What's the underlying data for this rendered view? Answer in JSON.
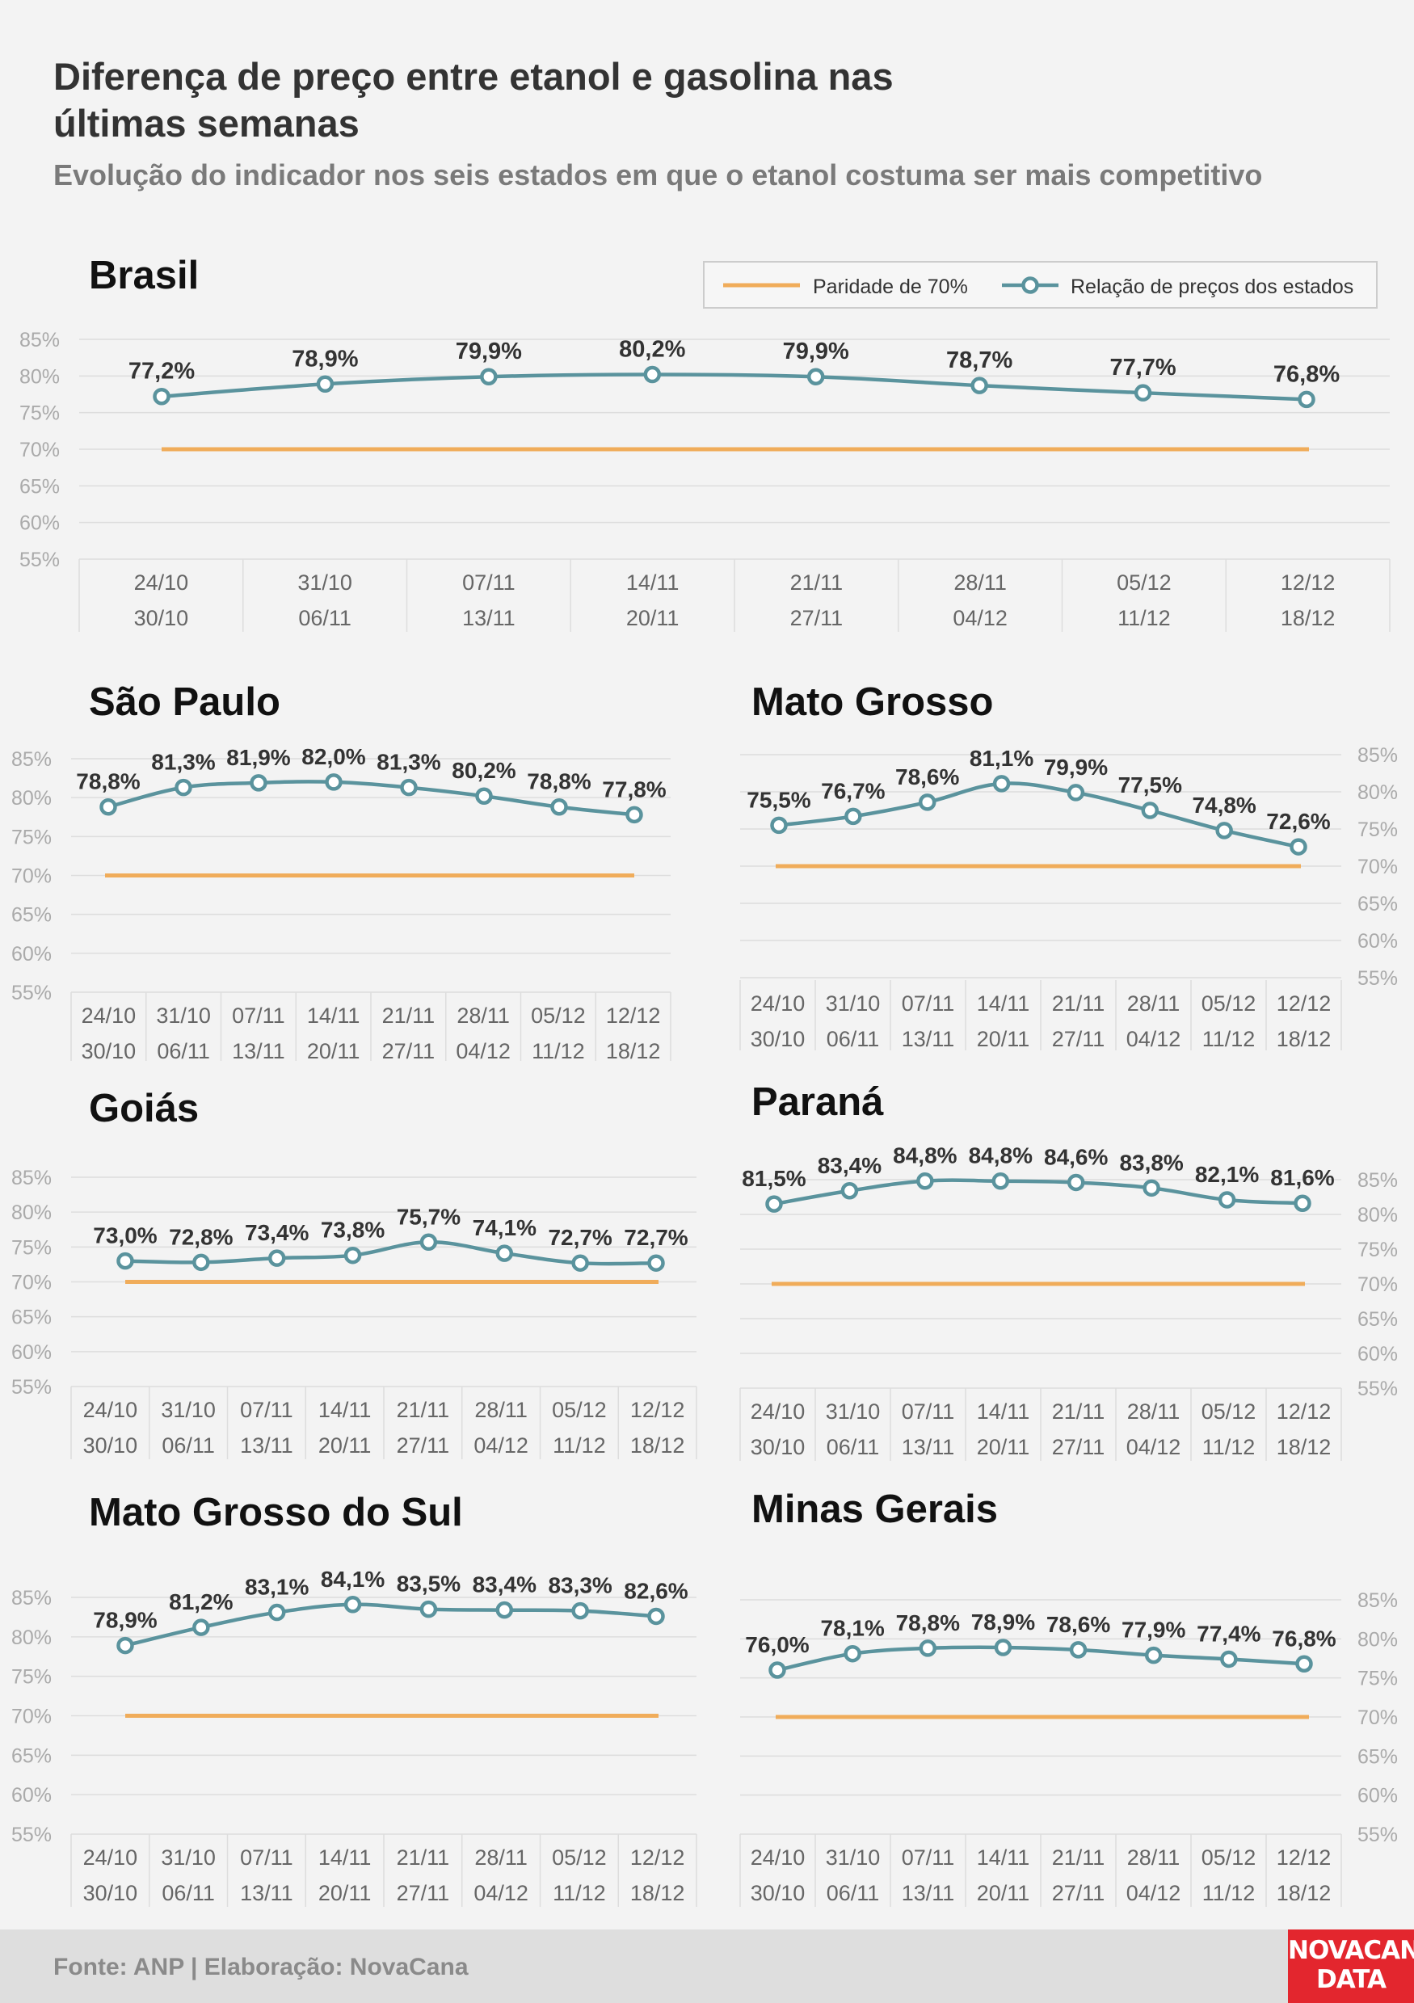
{
  "title": "Diferença de preço entre etanol e gasolina nas últimas semanas",
  "subtitle": "Evolução do indicador nos seis estados em que o etanol costuma ser mais competitivo",
  "legend": {
    "parity": "Paridade de 70%",
    "ratio": "Relação de preços dos estados"
  },
  "colors": {
    "ratio_line": "#5a939d",
    "parity_line": "#f0ac5a",
    "grid": "#dddddd",
    "axis_text": "#aaaaaa",
    "label_text": "#333333"
  },
  "footer": {
    "source": "Fonte: ANP | Elaboração: NovaCana",
    "logo_line1": "NOVACANA",
    "logo_line2": "DATA"
  },
  "chart_data": [
    {
      "type": "line",
      "title": "Brasil",
      "categories": [
        "24/10",
        "31/10",
        "07/11",
        "14/11",
        "21/11",
        "28/11",
        "05/12",
        "12/12"
      ],
      "categories_end": [
        "30/10",
        "06/11",
        "13/11",
        "20/11",
        "27/11",
        "04/12",
        "11/12",
        "18/12"
      ],
      "series": [
        {
          "name": "Relação de preços dos estados",
          "values": [
            77.2,
            78.9,
            79.9,
            80.2,
            79.9,
            78.7,
            77.7,
            76.8
          ],
          "labels": [
            "77,2%",
            "78,9%",
            "79,9%",
            "80,2%",
            "79,9%",
            "78,7%",
            "77,7%",
            "76,8%"
          ]
        },
        {
          "name": "Paridade de 70%",
          "values": [
            70,
            70,
            70,
            70,
            70,
            70,
            70,
            70
          ]
        }
      ],
      "yticks": [
        "55%",
        "60%",
        "65%",
        "70%",
        "75%",
        "80%",
        "85%"
      ],
      "ylim": [
        55,
        85
      ],
      "grid": true,
      "axis_side": "left",
      "legend": "top-right"
    },
    {
      "type": "line",
      "title": "São Paulo",
      "categories": [
        "24/10",
        "31/10",
        "07/11",
        "14/11",
        "21/11",
        "28/11",
        "05/12",
        "12/12"
      ],
      "categories_end": [
        "30/10",
        "06/11",
        "13/11",
        "20/11",
        "27/11",
        "04/12",
        "11/12",
        "18/12"
      ],
      "series": [
        {
          "name": "Relação de preços dos estados",
          "values": [
            78.8,
            81.3,
            81.9,
            82.0,
            81.3,
            80.2,
            78.8,
            77.8
          ],
          "labels": [
            "78,8%",
            "81,3%",
            "81,9%",
            "82,0%",
            "81,3%",
            "80,2%",
            "78,8%",
            "77,8%"
          ]
        },
        {
          "name": "Paridade de 70%",
          "values": [
            70,
            70,
            70,
            70,
            70,
            70,
            70,
            70
          ]
        }
      ],
      "yticks": [
        "55%",
        "60%",
        "65%",
        "70%",
        "75%",
        "80%",
        "85%"
      ],
      "ylim": [
        55,
        85
      ],
      "grid": true,
      "axis_side": "left"
    },
    {
      "type": "line",
      "title": "Mato Grosso",
      "categories": [
        "24/10",
        "31/10",
        "07/11",
        "14/11",
        "21/11",
        "28/11",
        "05/12",
        "12/12"
      ],
      "categories_end": [
        "30/10",
        "06/11",
        "13/11",
        "20/11",
        "27/11",
        "04/12",
        "11/12",
        "18/12"
      ],
      "series": [
        {
          "name": "Relação de preços dos estados",
          "values": [
            75.5,
            76.7,
            78.6,
            81.1,
            79.9,
            77.5,
            74.8,
            72.6
          ],
          "labels": [
            "75,5%",
            "76,7%",
            "78,6%",
            "81,1%",
            "79,9%",
            "77,5%",
            "74,8%",
            "72,6%"
          ]
        },
        {
          "name": "Paridade de 70%",
          "values": [
            70,
            70,
            70,
            70,
            70,
            70,
            70,
            70
          ]
        }
      ],
      "yticks": [
        "55%",
        "60%",
        "65%",
        "70%",
        "75%",
        "80%",
        "85%"
      ],
      "ylim": [
        55,
        85
      ],
      "grid": true,
      "axis_side": "right"
    },
    {
      "type": "line",
      "title": "Goiás",
      "categories": [
        "24/10",
        "31/10",
        "07/11",
        "14/11",
        "21/11",
        "28/11",
        "05/12",
        "12/12"
      ],
      "categories_end": [
        "30/10",
        "06/11",
        "13/11",
        "20/11",
        "27/11",
        "04/12",
        "11/12",
        "18/12"
      ],
      "series": [
        {
          "name": "Relação de preços dos estados",
          "values": [
            73.0,
            72.8,
            73.4,
            73.8,
            75.7,
            74.1,
            72.7,
            72.7
          ],
          "labels": [
            "73,0%",
            "72,8%",
            "73,4%",
            "73,8%",
            "75,7%",
            "74,1%",
            "72,7%",
            "72,7%"
          ]
        },
        {
          "name": "Paridade de 70%",
          "values": [
            70,
            70,
            70,
            70,
            70,
            70,
            70,
            70
          ]
        }
      ],
      "yticks": [
        "55%",
        "60%",
        "65%",
        "70%",
        "75%",
        "80%",
        "85%"
      ],
      "ylim": [
        55,
        85
      ],
      "grid": true,
      "axis_side": "left"
    },
    {
      "type": "line",
      "title": "Paraná",
      "categories": [
        "24/10",
        "31/10",
        "07/11",
        "14/11",
        "21/11",
        "28/11",
        "05/12",
        "12/12"
      ],
      "categories_end": [
        "30/10",
        "06/11",
        "13/11",
        "20/11",
        "27/11",
        "04/12",
        "11/12",
        "18/12"
      ],
      "series": [
        {
          "name": "Relação de preços dos estados",
          "values": [
            81.5,
            83.4,
            84.8,
            84.8,
            84.6,
            83.8,
            82.1,
            81.6
          ],
          "labels": [
            "81,5%",
            "83,4%",
            "84,8%",
            "84,8%",
            "84,6%",
            "83,8%",
            "82,1%",
            "81,6%"
          ]
        },
        {
          "name": "Paridade de 70%",
          "values": [
            70,
            70,
            70,
            70,
            70,
            70,
            70,
            70
          ]
        }
      ],
      "yticks": [
        "55%",
        "60%",
        "65%",
        "70%",
        "75%",
        "80%",
        "85%"
      ],
      "ylim": [
        55,
        85
      ],
      "grid": true,
      "axis_side": "right"
    },
    {
      "type": "line",
      "title": "Mato Grosso do Sul",
      "categories": [
        "24/10",
        "31/10",
        "07/11",
        "14/11",
        "21/11",
        "28/11",
        "05/12",
        "12/12"
      ],
      "categories_end": [
        "30/10",
        "06/11",
        "13/11",
        "20/11",
        "27/11",
        "04/12",
        "11/12",
        "18/12"
      ],
      "series": [
        {
          "name": "Relação de preços dos estados",
          "values": [
            78.9,
            81.2,
            83.1,
            84.1,
            83.5,
            83.4,
            83.3,
            82.6
          ],
          "labels": [
            "78,9%",
            "81,2%",
            "83,1%",
            "84,1%",
            "83,5%",
            "83,4%",
            "83,3%",
            "82,6%"
          ]
        },
        {
          "name": "Paridade de 70%",
          "values": [
            70,
            70,
            70,
            70,
            70,
            70,
            70,
            70
          ]
        }
      ],
      "yticks": [
        "55%",
        "60%",
        "65%",
        "70%",
        "75%",
        "80%",
        "85%"
      ],
      "ylim": [
        55,
        85
      ],
      "grid": true,
      "axis_side": "left"
    },
    {
      "type": "line",
      "title": "Minas Gerais",
      "categories": [
        "24/10",
        "31/10",
        "07/11",
        "14/11",
        "21/11",
        "28/11",
        "05/12",
        "12/12"
      ],
      "categories_end": [
        "30/10",
        "06/11",
        "13/11",
        "20/11",
        "27/11",
        "04/12",
        "11/12",
        "18/12"
      ],
      "series": [
        {
          "name": "Relação de preços dos estados",
          "values": [
            76.0,
            78.1,
            78.8,
            78.9,
            78.6,
            77.9,
            77.4,
            76.8
          ],
          "labels": [
            "76,0%",
            "78,1%",
            "78,8%",
            "78,9%",
            "78,6%",
            "77,9%",
            "77,4%",
            "76,8%"
          ]
        },
        {
          "name": "Paridade de 70%",
          "values": [
            70,
            70,
            70,
            70,
            70,
            70,
            70,
            70
          ]
        }
      ],
      "yticks": [
        "55%",
        "60%",
        "65%",
        "70%",
        "75%",
        "80%",
        "85%"
      ],
      "ylim": [
        55,
        85
      ],
      "grid": true,
      "axis_side": "right"
    }
  ]
}
